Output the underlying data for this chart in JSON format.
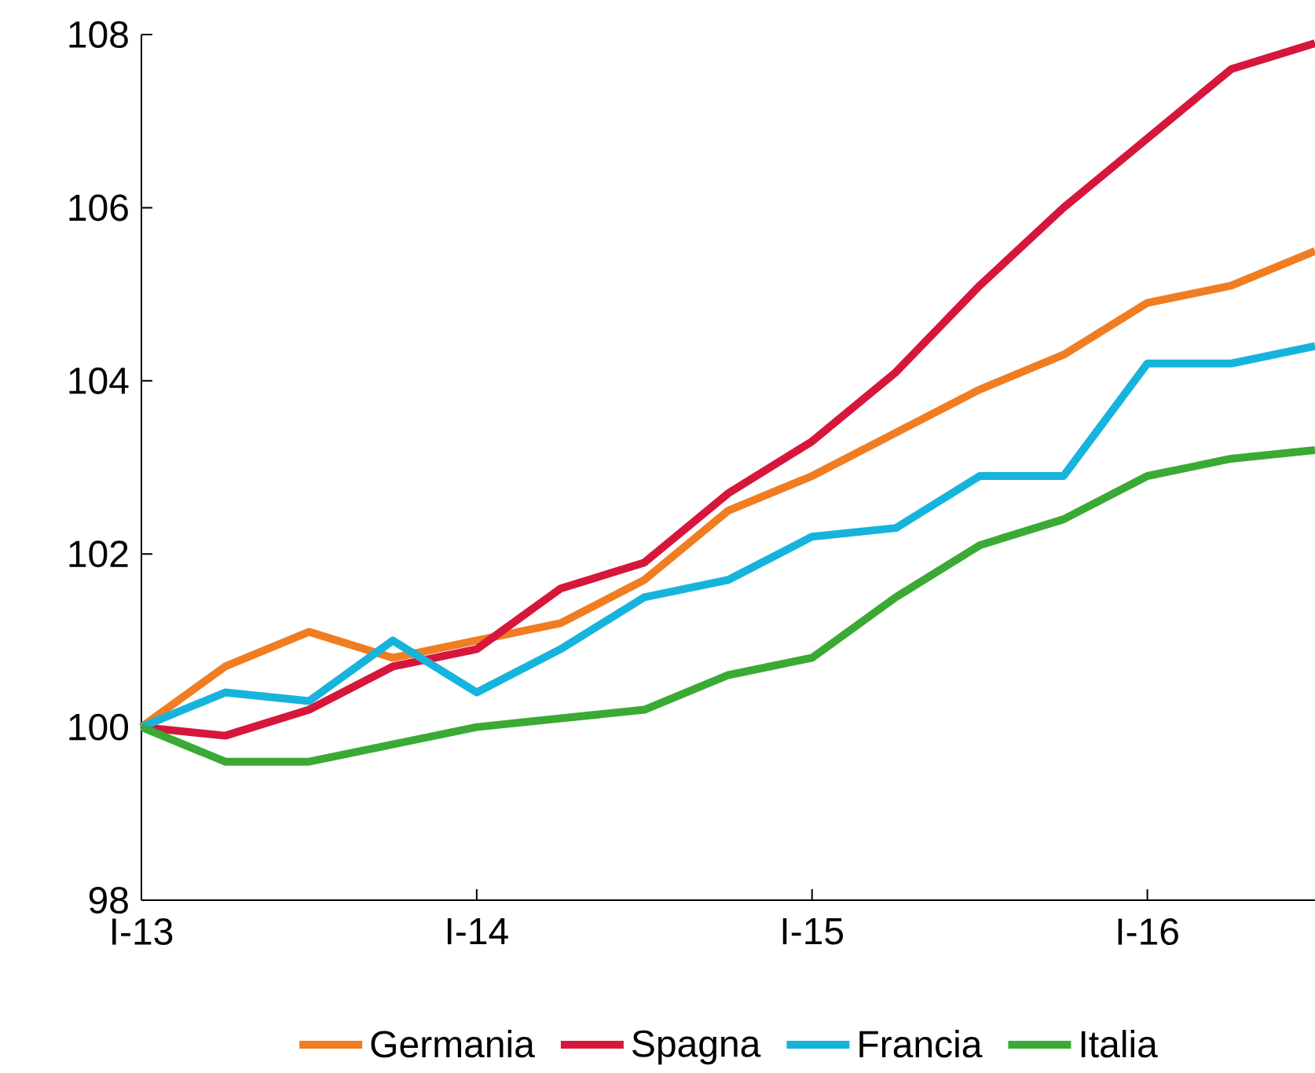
{
  "chart_data": {
    "type": "line",
    "categories": [
      "I-13",
      null,
      null,
      null,
      "I-14",
      null,
      null,
      null,
      "I-15",
      null,
      null,
      null,
      "I-16",
      null,
      null
    ],
    "ylim": [
      98,
      108
    ],
    "yticks": [
      98,
      100,
      102,
      104,
      106,
      108
    ],
    "grid": false,
    "legend": "bottom",
    "marker": "none",
    "line_style": "solid",
    "series": [
      {
        "name": "Germania",
        "color": "#f07d22",
        "values": [
          100,
          100.7,
          101.1,
          100.8,
          101.0,
          101.2,
          101.7,
          102.5,
          102.9,
          103.4,
          103.9,
          104.3,
          104.9,
          105.1,
          105.5
        ]
      },
      {
        "name": "Spagna",
        "color": "#d7163c",
        "values": [
          100,
          99.9,
          100.2,
          100.7,
          100.9,
          101.6,
          101.9,
          102.7,
          103.3,
          104.1,
          105.1,
          106.0,
          106.8,
          107.6,
          107.9
        ]
      },
      {
        "name": "Francia",
        "color": "#16b4dc",
        "values": [
          100,
          100.4,
          100.3,
          101.0,
          100.4,
          100.9,
          101.5,
          101.7,
          102.2,
          102.3,
          102.9,
          102.9,
          104.2,
          104.2,
          104.4
        ]
      },
      {
        "name": "Italia",
        "color": "#3aaa35",
        "values": [
          100,
          99.6,
          99.6,
          99.8,
          100.0,
          100.1,
          100.2,
          100.6,
          100.8,
          101.5,
          102.1,
          102.4,
          102.9,
          103.1,
          103.2
        ]
      }
    ]
  }
}
